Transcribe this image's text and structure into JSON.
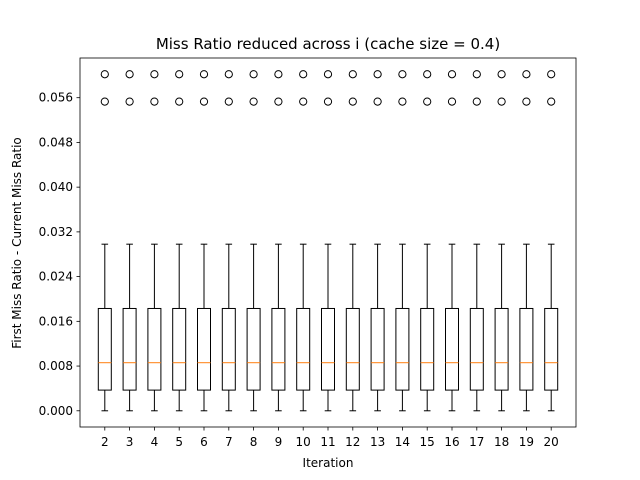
{
  "chart_data": {
    "type": "box",
    "title": "Miss Ratio reduced across i (cache size = 0.4)",
    "xlabel": "Iteration",
    "ylabel": "First Miss Ratio - Current Miss Ratio",
    "categories": [
      "2",
      "3",
      "4",
      "5",
      "6",
      "7",
      "8",
      "9",
      "10",
      "11",
      "12",
      "13",
      "14",
      "15",
      "16",
      "17",
      "18",
      "19",
      "20"
    ],
    "ylim": [
      -0.0029,
      0.0631
    ],
    "yticks": [
      0.0,
      0.008,
      0.016,
      0.024,
      0.032,
      0.04,
      0.048,
      0.056
    ],
    "ytick_labels": [
      "0.000",
      "0.008",
      "0.016",
      "0.024",
      "0.032",
      "0.040",
      "0.048",
      "0.056"
    ],
    "box": {
      "whisker_low": 0.0,
      "q1": 0.0037,
      "median": 0.0086,
      "q3": 0.0183,
      "whisker_high": 0.0298,
      "outliers": [
        0.0553,
        0.0602
      ]
    },
    "grid": false,
    "colors": {
      "box": "#000000",
      "median": "#ff7f0e",
      "outlier": "#000000"
    }
  }
}
